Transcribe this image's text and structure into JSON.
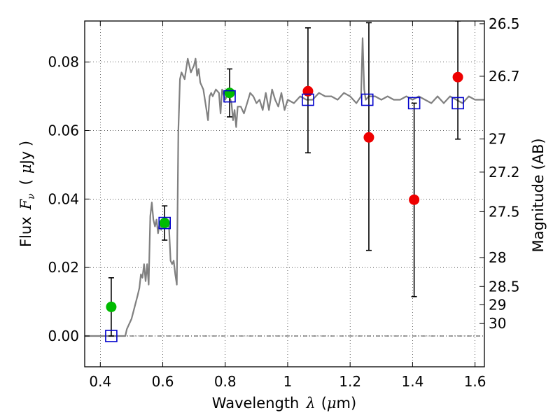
{
  "chart_data": {
    "type": "scatter",
    "title": "",
    "xlabel": "Wavelength",
    "xlabel_symbol": "λ",
    "xlabel_unit_open": "(",
    "xlabel_unit_mu": "μ",
    "xlabel_unit_rest": "m)",
    "ylabel": "Flux",
    "ylabel_symbol": "F",
    "ylabel_subscript": "ν",
    "ylabel_unit_open": "(",
    "ylabel_unit_mu": "μ",
    "ylabel_unit_rest": "Jy )",
    "y2label": "Magnitude (AB)",
    "xlim": [
      0.35,
      1.63
    ],
    "ylim": [
      -0.009,
      0.092
    ],
    "grid": true,
    "x_ticks": [
      {
        "value": 0.4,
        "label": "0.4"
      },
      {
        "value": 0.6,
        "label": "0.6"
      },
      {
        "value": 0.8,
        "label": "0.8"
      },
      {
        "value": 1.0,
        "label": "1"
      },
      {
        "value": 1.2,
        "label": "1.2"
      },
      {
        "value": 1.4,
        "label": "1.4"
      },
      {
        "value": 1.6,
        "label": "1.6"
      }
    ],
    "y_ticks": [
      {
        "value": 0.0,
        "label": "0.00"
      },
      {
        "value": 0.02,
        "label": "0.02"
      },
      {
        "value": 0.04,
        "label": "0.04"
      },
      {
        "value": 0.06,
        "label": "0.06"
      },
      {
        "value": 0.08,
        "label": "0.08"
      }
    ],
    "y2_ticks": [
      {
        "mag": 26.5,
        "label": "26.5"
      },
      {
        "mag": 26.7,
        "label": "26.7"
      },
      {
        "mag": 27,
        "label": "27"
      },
      {
        "mag": 27.2,
        "label": "27.2"
      },
      {
        "mag": 27.5,
        "label": "27.5"
      },
      {
        "mag": 28,
        "label": "28"
      },
      {
        "mag": 28.5,
        "label": "28.5"
      },
      {
        "mag": 29,
        "label": "29"
      },
      {
        "mag": 30,
        "label": "30"
      }
    ],
    "model_spectrum": {
      "color": "#808080",
      "x": [
        0.35,
        0.48,
        0.485,
        0.5,
        0.52,
        0.525,
        0.53,
        0.535,
        0.54,
        0.545,
        0.55,
        0.555,
        0.56,
        0.565,
        0.57,
        0.575,
        0.58,
        0.585,
        0.59,
        0.595,
        0.6,
        0.61,
        0.62,
        0.625,
        0.63,
        0.635,
        0.64,
        0.645,
        0.65,
        0.655,
        0.66,
        0.67,
        0.68,
        0.69,
        0.7,
        0.705,
        0.71,
        0.715,
        0.72,
        0.73,
        0.74,
        0.745,
        0.75,
        0.755,
        0.76,
        0.77,
        0.78,
        0.785,
        0.79,
        0.8,
        0.81,
        0.82,
        0.825,
        0.83,
        0.835,
        0.84,
        0.85,
        0.86,
        0.87,
        0.88,
        0.89,
        0.9,
        0.91,
        0.92,
        0.93,
        0.94,
        0.95,
        0.96,
        0.97,
        0.98,
        0.99,
        1.0,
        1.02,
        1.04,
        1.06,
        1.08,
        1.1,
        1.12,
        1.14,
        1.16,
        1.18,
        1.2,
        1.22,
        1.235,
        1.24,
        1.245,
        1.25,
        1.26,
        1.28,
        1.3,
        1.32,
        1.34,
        1.36,
        1.38,
        1.4,
        1.42,
        1.44,
        1.46,
        1.48,
        1.5,
        1.52,
        1.54,
        1.56,
        1.58,
        1.6,
        1.63
      ],
      "y": [
        0.0,
        0.0,
        0.002,
        0.005,
        0.012,
        0.014,
        0.018,
        0.017,
        0.021,
        0.016,
        0.021,
        0.015,
        0.035,
        0.039,
        0.034,
        0.032,
        0.034,
        0.03,
        0.033,
        0.031,
        0.033,
        0.034,
        0.032,
        0.022,
        0.021,
        0.022,
        0.018,
        0.015,
        0.06,
        0.075,
        0.077,
        0.075,
        0.081,
        0.077,
        0.079,
        0.081,
        0.076,
        0.078,
        0.074,
        0.072,
        0.066,
        0.063,
        0.07,
        0.071,
        0.07,
        0.072,
        0.071,
        0.065,
        0.072,
        0.069,
        0.071,
        0.068,
        0.063,
        0.066,
        0.061,
        0.067,
        0.067,
        0.065,
        0.068,
        0.071,
        0.07,
        0.068,
        0.069,
        0.066,
        0.071,
        0.066,
        0.072,
        0.069,
        0.067,
        0.071,
        0.066,
        0.069,
        0.068,
        0.07,
        0.069,
        0.069,
        0.071,
        0.07,
        0.07,
        0.069,
        0.071,
        0.07,
        0.068,
        0.07,
        0.087,
        0.072,
        0.069,
        0.07,
        0.07,
        0.069,
        0.07,
        0.069,
        0.069,
        0.07,
        0.069,
        0.07,
        0.069,
        0.068,
        0.07,
        0.068,
        0.07,
        0.069,
        0.068,
        0.07,
        0.069,
        0.069
      ]
    },
    "model_photometry": {
      "marker": "open-square",
      "color": "#0000cc",
      "points": [
        {
          "x": 0.435,
          "y": 0.0
        },
        {
          "x": 0.606,
          "y": 0.033
        },
        {
          "x": 0.814,
          "y": 0.07
        },
        {
          "x": 1.065,
          "y": 0.069
        },
        {
          "x": 1.255,
          "y": 0.069
        },
        {
          "x": 1.405,
          "y": 0.068
        },
        {
          "x": 1.545,
          "y": 0.068
        }
      ]
    },
    "observed_optical": {
      "marker": "filled-circle",
      "color": "#00bb00",
      "points": [
        {
          "x": 0.435,
          "y": 0.0085,
          "ylo": 0.0,
          "yhi": 0.017
        },
        {
          "x": 0.606,
          "y": 0.033,
          "ylo": 0.028,
          "yhi": 0.038
        },
        {
          "x": 0.814,
          "y": 0.071,
          "ylo": 0.064,
          "yhi": 0.078
        }
      ]
    },
    "observed_nir": {
      "marker": "filled-circle",
      "color": "#ee0000",
      "points": [
        {
          "x": 1.065,
          "y": 0.0715,
          "ylo": 0.0535,
          "yhi": 0.09
        },
        {
          "x": 1.26,
          "y": 0.058,
          "ylo": 0.025,
          "yhi": 0.0915
        },
        {
          "x": 1.405,
          "y": 0.0398,
          "ylo": 0.0115,
          "yhi": 0.068
        },
        {
          "x": 1.545,
          "y": 0.0756,
          "ylo": 0.0575,
          "yhi": 0.092
        }
      ]
    }
  }
}
